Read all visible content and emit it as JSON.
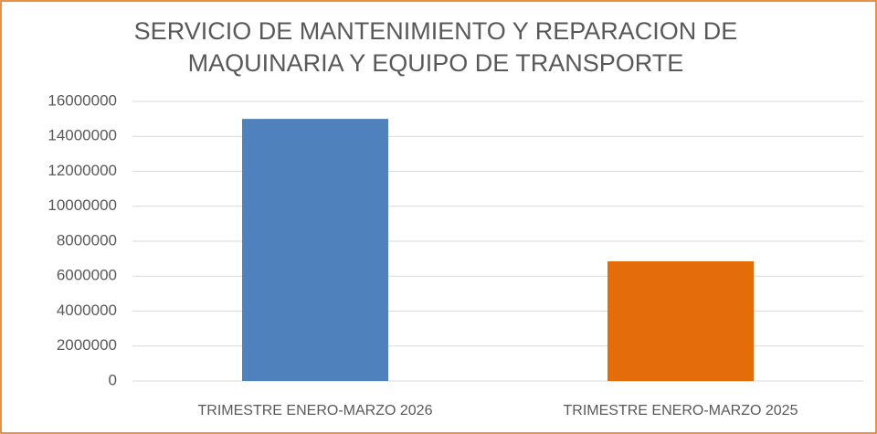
{
  "chart_data": {
    "type": "bar",
    "title": [
      "SERVICIO DE MANTENIMIENTO  Y REPARACION DE",
      "MAQUINARIA  Y EQUIPO DE TRANSPORTE"
    ],
    "categories": [
      "TRIMESTRE ENERO-MARZO 2026",
      "TRIMESTRE ENERO-MARZO 2025"
    ],
    "values": [
      15000000,
      6850000
    ],
    "colors": [
      "#4f81bd",
      "#e46c0a"
    ],
    "ylim": [
      0,
      16000000
    ],
    "yticks": [
      0,
      2000000,
      4000000,
      6000000,
      8000000,
      10000000,
      12000000,
      14000000,
      16000000
    ],
    "grid": true
  }
}
